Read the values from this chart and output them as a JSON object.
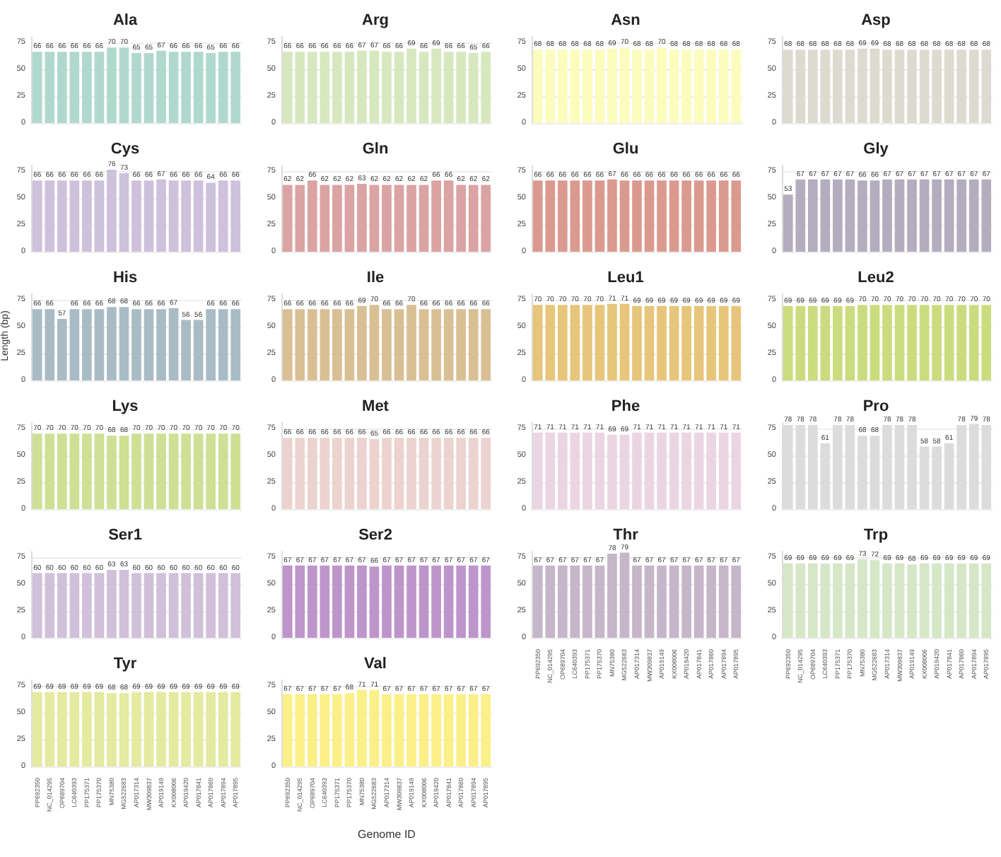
{
  "chart_data": [
    {
      "type": "bar",
      "title": "Ala",
      "categories": [
        null,
        null,
        null,
        null,
        null,
        null,
        null,
        null,
        null,
        null,
        null,
        null,
        null,
        null,
        null,
        null,
        null
      ],
      "series": [
        {
          "color": "#b0d9ce",
          "values": [
            66,
            66,
            66,
            66,
            66,
            66,
            70,
            70,
            65,
            65,
            67,
            66,
            66,
            66,
            65,
            66,
            66
          ]
        }
      ],
      "ylim": [
        0,
        80
      ],
      "yticks": [
        0,
        25,
        50,
        75
      ],
      "grid": "y",
      "data_labels": true,
      "tick_labels": "y"
    },
    {
      "type": "bar",
      "title": "Arg",
      "categories": [
        null,
        null,
        null,
        null,
        null,
        null,
        null,
        null,
        null,
        null,
        null,
        null,
        null,
        null,
        null,
        null,
        null
      ],
      "series": [
        {
          "color": "#d7e8bf",
          "values": [
            66,
            66,
            66,
            66,
            66,
            66,
            67,
            67,
            66,
            66,
            69,
            66,
            69,
            66,
            66,
            65,
            66
          ]
        }
      ],
      "ylim": [
        0,
        80
      ],
      "yticks": [
        0,
        25,
        50,
        75
      ],
      "grid": "y",
      "data_labels": true,
      "tick_labels": "y"
    },
    {
      "type": "bar",
      "title": "Asn",
      "categories": [
        null,
        null,
        null,
        null,
        null,
        null,
        null,
        null,
        null,
        null,
        null,
        null,
        null,
        null,
        null,
        null,
        null
      ],
      "series": [
        {
          "color": "#fcfcbd",
          "values": [
            68,
            68,
            68,
            68,
            68,
            68,
            69,
            70,
            68,
            68,
            70,
            68,
            68,
            68,
            68,
            68,
            68
          ]
        }
      ],
      "ylim": [
        0,
        80
      ],
      "yticks": [
        0,
        25,
        50,
        75
      ],
      "grid": "y",
      "data_labels": true,
      "tick_labels": "y"
    },
    {
      "type": "bar",
      "title": "Asp",
      "categories": [
        null,
        null,
        null,
        null,
        null,
        null,
        null,
        null,
        null,
        null,
        null,
        null,
        null,
        null,
        null,
        null,
        null
      ],
      "series": [
        {
          "color": "#dddbd0",
          "values": [
            68,
            68,
            68,
            68,
            68,
            68,
            69,
            69,
            68,
            68,
            68,
            68,
            68,
            68,
            68,
            68,
            68
          ]
        }
      ],
      "ylim": [
        0,
        80
      ],
      "yticks": [
        0,
        25,
        50,
        75
      ],
      "grid": "y",
      "data_labels": true,
      "tick_labels": "y"
    },
    {
      "type": "bar",
      "title": "Cys",
      "categories": [
        null,
        null,
        null,
        null,
        null,
        null,
        null,
        null,
        null,
        null,
        null,
        null,
        null,
        null,
        null,
        null,
        null
      ],
      "series": [
        {
          "color": "#cdc1dc",
          "values": [
            66,
            66,
            66,
            66,
            66,
            66,
            76,
            73,
            66,
            66,
            67,
            66,
            66,
            66,
            64,
            66,
            66
          ]
        }
      ],
      "ylim": [
        0,
        80
      ],
      "yticks": [
        0,
        25,
        50,
        75
      ],
      "grid": "y",
      "data_labels": true,
      "tick_labels": "y"
    },
    {
      "type": "bar",
      "title": "Gln",
      "categories": [
        null,
        null,
        null,
        null,
        null,
        null,
        null,
        null,
        null,
        null,
        null,
        null,
        null,
        null,
        null,
        null,
        null
      ],
      "series": [
        {
          "color": "#dba3a3",
          "values": [
            62,
            62,
            66,
            62,
            62,
            62,
            63,
            62,
            62,
            62,
            62,
            62,
            66,
            66,
            62,
            62,
            62
          ]
        }
      ],
      "ylim": [
        0,
        80
      ],
      "yticks": [
        0,
        25,
        50,
        75
      ],
      "grid": "y",
      "data_labels": true,
      "tick_labels": "y"
    },
    {
      "type": "bar",
      "title": "Glu",
      "categories": [
        null,
        null,
        null,
        null,
        null,
        null,
        null,
        null,
        null,
        null,
        null,
        null,
        null,
        null,
        null,
        null,
        null
      ],
      "series": [
        {
          "color": "#db9a8f",
          "values": [
            66,
            66,
            66,
            66,
            66,
            66,
            67,
            66,
            66,
            66,
            66,
            66,
            66,
            66,
            66,
            66,
            66
          ]
        }
      ],
      "ylim": [
        0,
        80
      ],
      "yticks": [
        0,
        25,
        50,
        75
      ],
      "grid": "y",
      "data_labels": true,
      "tick_labels": "y"
    },
    {
      "type": "bar",
      "title": "Gly",
      "categories": [
        null,
        null,
        null,
        null,
        null,
        null,
        null,
        null,
        null,
        null,
        null,
        null,
        null,
        null,
        null,
        null,
        null
      ],
      "series": [
        {
          "color": "#b3adbf",
          "values": [
            53,
            67,
            67,
            67,
            67,
            67,
            66,
            66,
            67,
            67,
            67,
            67,
            67,
            67,
            67,
            67,
            67
          ]
        }
      ],
      "ylim": [
        0,
        80
      ],
      "yticks": [
        0,
        25,
        50,
        75
      ],
      "grid": "y",
      "data_labels": true,
      "tick_labels": "y"
    },
    {
      "type": "bar",
      "title": "His",
      "ylabel": "Length (bp)",
      "categories": [
        null,
        null,
        null,
        null,
        null,
        null,
        null,
        null,
        null,
        null,
        null,
        null,
        null,
        null,
        null,
        null,
        null
      ],
      "series": [
        {
          "color": "#a9bcc6",
          "values": [
            66,
            66,
            57,
            66,
            66,
            66,
            68,
            68,
            66,
            66,
            66,
            67,
            56,
            56,
            66,
            66,
            66
          ]
        }
      ],
      "ylim": [
        0,
        80
      ],
      "yticks": [
        0,
        25,
        50,
        75
      ],
      "grid": "y",
      "data_labels": true,
      "tick_labels": "y"
    },
    {
      "type": "bar",
      "title": "Ile",
      "categories": [
        null,
        null,
        null,
        null,
        null,
        null,
        null,
        null,
        null,
        null,
        null,
        null,
        null,
        null,
        null,
        null,
        null
      ],
      "series": [
        {
          "color": "#d9bf94",
          "values": [
            66,
            66,
            66,
            66,
            66,
            66,
            69,
            70,
            66,
            66,
            70,
            66,
            66,
            66,
            66,
            66,
            66
          ]
        }
      ],
      "ylim": [
        0,
        80
      ],
      "yticks": [
        0,
        25,
        50,
        75
      ],
      "grid": "y",
      "data_labels": true,
      "tick_labels": "y"
    },
    {
      "type": "bar",
      "title": "Leu1",
      "categories": [
        null,
        null,
        null,
        null,
        null,
        null,
        null,
        null,
        null,
        null,
        null,
        null,
        null,
        null,
        null,
        null,
        null
      ],
      "series": [
        {
          "color": "#e7c57a",
          "values": [
            70,
            70,
            70,
            70,
            70,
            70,
            71,
            71,
            69,
            69,
            69,
            69,
            69,
            69,
            69,
            69,
            69
          ]
        }
      ],
      "ylim": [
        0,
        80
      ],
      "yticks": [
        0,
        25,
        50,
        75
      ],
      "grid": "y",
      "data_labels": true,
      "tick_labels": "y"
    },
    {
      "type": "bar",
      "title": "Leu2",
      "categories": [
        null,
        null,
        null,
        null,
        null,
        null,
        null,
        null,
        null,
        null,
        null,
        null,
        null,
        null,
        null,
        null,
        null
      ],
      "series": [
        {
          "color": "#cbdc7e",
          "values": [
            69,
            69,
            69,
            69,
            69,
            69,
            70,
            70,
            70,
            70,
            70,
            70,
            70,
            70,
            70,
            70,
            70
          ]
        }
      ],
      "ylim": [
        0,
        80
      ],
      "yticks": [
        0,
        25,
        50,
        75
      ],
      "grid": "y",
      "data_labels": true,
      "tick_labels": "y"
    },
    {
      "type": "bar",
      "title": "Lys",
      "categories": [
        null,
        null,
        null,
        null,
        null,
        null,
        null,
        null,
        null,
        null,
        null,
        null,
        null,
        null,
        null,
        null,
        null
      ],
      "series": [
        {
          "color": "#cfdf94",
          "values": [
            70,
            70,
            70,
            70,
            70,
            70,
            68,
            68,
            70,
            70,
            70,
            70,
            70,
            70,
            70,
            70,
            70
          ]
        }
      ],
      "ylim": [
        0,
        80
      ],
      "yticks": [
        0,
        25,
        50,
        75
      ],
      "grid": "y",
      "data_labels": true,
      "tick_labels": "y"
    },
    {
      "type": "bar",
      "title": "Met",
      "categories": [
        null,
        null,
        null,
        null,
        null,
        null,
        null,
        null,
        null,
        null,
        null,
        null,
        null,
        null,
        null,
        null,
        null
      ],
      "series": [
        {
          "color": "#ecd3cf",
          "values": [
            66,
            66,
            66,
            66,
            66,
            66,
            66,
            65,
            66,
            66,
            66,
            66,
            66,
            66,
            66,
            66,
            66
          ]
        }
      ],
      "ylim": [
        0,
        80
      ],
      "yticks": [
        0,
        25,
        50,
        75
      ],
      "grid": "y",
      "data_labels": true,
      "tick_labels": "y"
    },
    {
      "type": "bar",
      "title": "Phe",
      "categories": [
        null,
        null,
        null,
        null,
        null,
        null,
        null,
        null,
        null,
        null,
        null,
        null,
        null,
        null,
        null,
        null,
        null
      ],
      "series": [
        {
          "color": "#ecd5e3",
          "values": [
            71,
            71,
            71,
            71,
            71,
            71,
            69,
            69,
            71,
            71,
            71,
            71,
            71,
            71,
            71,
            71,
            71
          ]
        }
      ],
      "ylim": [
        0,
        80
      ],
      "yticks": [
        0,
        25,
        50,
        75
      ],
      "grid": "y",
      "data_labels": true,
      "tick_labels": "y"
    },
    {
      "type": "bar",
      "title": "Pro",
      "categories": [
        null,
        null,
        null,
        null,
        null,
        null,
        null,
        null,
        null,
        null,
        null,
        null,
        null,
        null,
        null,
        null,
        null
      ],
      "series": [
        {
          "color": "#dcdcdc",
          "values": [
            78,
            78,
            78,
            61,
            78,
            78,
            68,
            68,
            78,
            78,
            78,
            58,
            58,
            61,
            78,
            79,
            78
          ]
        }
      ],
      "ylim": [
        0,
        80
      ],
      "yticks": [
        0,
        25,
        50,
        75
      ],
      "grid": "y",
      "data_labels": true,
      "tick_labels": "y"
    },
    {
      "type": "bar",
      "title": "Ser1",
      "categories": [
        null,
        null,
        null,
        null,
        null,
        null,
        null,
        null,
        null,
        null,
        null,
        null,
        null,
        null,
        null,
        null,
        null
      ],
      "series": [
        {
          "color": "#d0c0da",
          "values": [
            60,
            60,
            60,
            60,
            60,
            60,
            63,
            63,
            60,
            60,
            60,
            60,
            60,
            60,
            60,
            60,
            60
          ]
        }
      ],
      "ylim": [
        0,
        80
      ],
      "yticks": [
        0,
        25,
        50,
        75
      ],
      "grid": "y",
      "data_labels": true,
      "tick_labels": "y"
    },
    {
      "type": "bar",
      "title": "Ser2",
      "categories": [
        null,
        null,
        null,
        null,
        null,
        null,
        null,
        null,
        null,
        null,
        null,
        null,
        null,
        null,
        null,
        null,
        null
      ],
      "series": [
        {
          "color": "#bd95cb",
          "values": [
            67,
            67,
            67,
            67,
            67,
            67,
            67,
            66,
            67,
            67,
            67,
            67,
            67,
            67,
            67,
            67,
            67
          ]
        }
      ],
      "ylim": [
        0,
        80
      ],
      "yticks": [
        0,
        25,
        50,
        75
      ],
      "grid": "y",
      "data_labels": true,
      "tick_labels": "y"
    },
    {
      "type": "bar",
      "title": "Thr",
      "categories": [
        "PP692350",
        "NC_014295",
        "OP689704",
        "LC640393",
        "PP175371",
        "PP175370",
        "MN75380",
        "MG522683",
        "AP017314",
        "MW309837",
        "AP019149",
        "KX008006",
        "AP019420",
        "AP017841",
        "AP017860",
        "AP017894",
        "AP017895"
      ],
      "series": [
        {
          "color": "#c6b6c9",
          "values": [
            67,
            67,
            67,
            67,
            67,
            67,
            78,
            79,
            67,
            67,
            67,
            67,
            67,
            67,
            67,
            67,
            67
          ]
        }
      ],
      "ylim": [
        0,
        80
      ],
      "yticks": [
        0,
        25,
        50,
        75
      ],
      "grid": "y",
      "data_labels": true
    },
    {
      "type": "bar",
      "title": "Trp",
      "categories": [
        "PP692350",
        "NC_014295",
        "OP689704",
        "LC640393",
        "PP175371",
        "PP175370",
        "MN75380",
        "MG522683",
        "AP017314",
        "MW309837",
        "AP019149",
        "KX008006",
        "AP019420",
        "AP017841",
        "AP017860",
        "AP017894",
        "AP017895"
      ],
      "series": [
        {
          "color": "#d5e7c7",
          "values": [
            69,
            69,
            69,
            69,
            69,
            69,
            73,
            72,
            69,
            69,
            68,
            69,
            69,
            69,
            69,
            69,
            69
          ]
        }
      ],
      "ylim": [
        0,
        80
      ],
      "yticks": [
        0,
        25,
        50,
        75
      ],
      "grid": "y",
      "data_labels": true
    },
    {
      "type": "bar",
      "title": "Tyr",
      "categories": [
        "PP692350",
        "NC_014295",
        "OP689704",
        "LC640393",
        "PP175371",
        "PP175370",
        "MN75380",
        "MG522683",
        "AP017314",
        "MW309837",
        "AP019149",
        "KX008006",
        "AP019420",
        "AP017841",
        "AP017860",
        "AP017894",
        "AP017895"
      ],
      "series": [
        {
          "color": "#e4ea9f",
          "values": [
            69,
            69,
            69,
            69,
            69,
            69,
            68,
            68,
            69,
            69,
            69,
            69,
            69,
            69,
            69,
            69,
            69
          ]
        }
      ],
      "ylim": [
        0,
        80
      ],
      "yticks": [
        0,
        25,
        50,
        75
      ],
      "grid": "y",
      "data_labels": true
    },
    {
      "type": "bar",
      "title": "Val",
      "xlabel": "Genome ID",
      "categories": [
        "PP692350",
        "NC_014295",
        "OP689704",
        "LC640393",
        "PP175371",
        "PP175370",
        "MN75380",
        "MG522683",
        "AP017314",
        "MW309837",
        "AP019149",
        "KX008006",
        "AP019420",
        "AP017841",
        "AP017860",
        "AP017894",
        "AP017895"
      ],
      "series": [
        {
          "color": "#fbef88",
          "values": [
            67,
            67,
            67,
            67,
            67,
            68,
            71,
            71,
            67,
            67,
            67,
            67,
            67,
            67,
            67,
            67,
            67
          ]
        }
      ],
      "ylim": [
        0,
        80
      ],
      "yticks": [
        0,
        25,
        50,
        75
      ],
      "grid": "y",
      "data_labels": true
    }
  ]
}
